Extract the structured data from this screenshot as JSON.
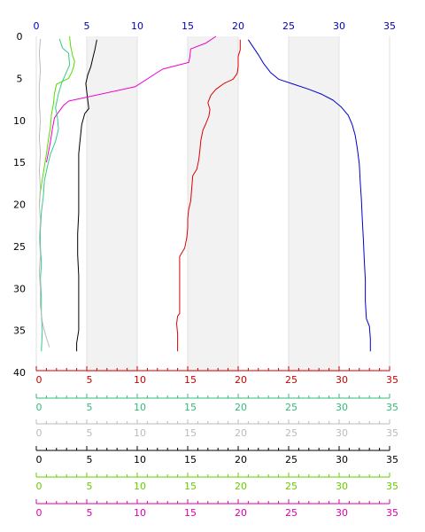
{
  "chart_data": {
    "type": "line",
    "orientation": "vertical-profile",
    "grid": true,
    "y_axis": {
      "min": 0,
      "max": 40,
      "ticks": [
        0,
        5,
        10,
        15,
        20,
        25,
        30,
        35,
        40
      ],
      "inverted": true
    },
    "bands": [
      [
        5,
        10
      ],
      [
        15,
        20
      ],
      [
        25,
        30
      ]
    ],
    "x_axes": [
      {
        "id": "top",
        "position": "top",
        "color": "#0000bb",
        "min": 0,
        "max": 35,
        "ticks": [
          0,
          5,
          10,
          15,
          20,
          25,
          30,
          35
        ]
      },
      {
        "id": "red",
        "position": "bottom",
        "color": "#cc0000",
        "min": 0,
        "max": 35,
        "ticks": [
          0,
          5,
          10,
          15,
          20,
          25,
          30,
          35
        ]
      },
      {
        "id": "teal",
        "position": "bottom",
        "color": "#33bb77",
        "min": 0,
        "max": 35,
        "ticks": [
          0,
          5,
          10,
          15,
          20,
          25,
          30,
          35
        ]
      },
      {
        "id": "lightgray",
        "position": "bottom",
        "color": "#bbbbbb",
        "min": 0,
        "max": 35,
        "ticks": [
          0,
          5,
          10,
          15,
          20,
          25,
          30,
          35
        ]
      },
      {
        "id": "black",
        "position": "bottom",
        "color": "#000000",
        "min": 0,
        "max": 35,
        "ticks": [
          0,
          5,
          10,
          15,
          20,
          25,
          30,
          35
        ]
      },
      {
        "id": "green",
        "position": "bottom",
        "color": "#66cc00",
        "min": 0,
        "max": 35,
        "ticks": [
          0,
          5,
          10,
          15,
          20,
          25,
          30,
          35
        ]
      },
      {
        "id": "magenta",
        "position": "bottom",
        "color": "#dd00aa",
        "min": 0,
        "max": 35,
        "ticks": [
          0,
          5,
          10,
          15,
          20,
          25,
          30,
          35
        ]
      }
    ],
    "series": [
      {
        "axis": "top",
        "color": "#0000cc",
        "points": [
          [
            21.0,
            0.4
          ],
          [
            21.5,
            1.3
          ],
          [
            22.0,
            2.2
          ],
          [
            22.5,
            3.2
          ],
          [
            23.2,
            4.3
          ],
          [
            24.0,
            5.1
          ],
          [
            25.5,
            5.7
          ],
          [
            27.0,
            6.3
          ],
          [
            28.3,
            6.9
          ],
          [
            29.4,
            7.6
          ],
          [
            30.2,
            8.4
          ],
          [
            30.9,
            9.4
          ],
          [
            31.3,
            10.5
          ],
          [
            31.6,
            11.8
          ],
          [
            31.8,
            13.3
          ],
          [
            32.0,
            15.2
          ],
          [
            32.1,
            17.4
          ],
          [
            32.2,
            19.3
          ],
          [
            32.3,
            21.8
          ],
          [
            32.4,
            24.2
          ],
          [
            32.5,
            26.8
          ],
          [
            32.6,
            29.0
          ],
          [
            32.6,
            31.5
          ],
          [
            32.7,
            33.6
          ],
          [
            33.0,
            34.5
          ],
          [
            33.1,
            36.0
          ],
          [
            33.1,
            37.5
          ]
        ]
      },
      {
        "axis": "red",
        "color": "#dd0000",
        "points": [
          [
            20.2,
            0.4
          ],
          [
            20.2,
            1.6
          ],
          [
            20.0,
            2.4
          ],
          [
            20.0,
            3.6
          ],
          [
            19.9,
            4.4
          ],
          [
            19.5,
            5.1
          ],
          [
            18.6,
            5.6
          ],
          [
            17.8,
            6.3
          ],
          [
            17.3,
            7.0
          ],
          [
            17.0,
            7.9
          ],
          [
            17.2,
            8.7
          ],
          [
            17.1,
            9.5
          ],
          [
            16.8,
            10.4
          ],
          [
            16.5,
            11.2
          ],
          [
            16.3,
            12.4
          ],
          [
            16.2,
            13.6
          ],
          [
            16.1,
            14.7
          ],
          [
            15.9,
            15.8
          ],
          [
            15.5,
            16.6
          ],
          [
            15.4,
            18.0
          ],
          [
            15.3,
            19.6
          ],
          [
            15.1,
            20.6
          ],
          [
            15.0,
            21.7
          ],
          [
            15.0,
            22.8
          ],
          [
            14.9,
            24.0
          ],
          [
            14.7,
            25.2
          ],
          [
            14.2,
            26.2
          ],
          [
            14.2,
            28.0
          ],
          [
            14.2,
            30.0
          ],
          [
            14.2,
            31.6
          ],
          [
            14.2,
            33.0
          ],
          [
            14.0,
            33.3
          ],
          [
            13.9,
            34.2
          ],
          [
            14.0,
            35.4
          ],
          [
            14.0,
            37.5
          ]
        ]
      },
      {
        "axis": "black",
        "color": "#000000",
        "points": [
          [
            6.0,
            0.4
          ],
          [
            5.8,
            1.6
          ],
          [
            5.6,
            2.6
          ],
          [
            5.4,
            3.6
          ],
          [
            5.1,
            4.6
          ],
          [
            4.9,
            5.6
          ],
          [
            5.0,
            6.6
          ],
          [
            5.1,
            7.6
          ],
          [
            5.2,
            8.6
          ],
          [
            4.8,
            9.2
          ],
          [
            4.5,
            10.5
          ],
          [
            4.4,
            11.6
          ],
          [
            4.3,
            12.8
          ],
          [
            4.2,
            14.0
          ],
          [
            4.2,
            16.0
          ],
          [
            4.2,
            18.5
          ],
          [
            4.2,
            21.0
          ],
          [
            4.1,
            23.5
          ],
          [
            4.1,
            26.0
          ],
          [
            4.2,
            28.5
          ],
          [
            4.2,
            31.0
          ],
          [
            4.2,
            33.0
          ],
          [
            4.2,
            35.0
          ],
          [
            4.0,
            36.5
          ],
          [
            4.0,
            37.5
          ]
        ]
      },
      {
        "axis": "magenta",
        "color": "#ee00cc",
        "points": [
          [
            17.8,
            0.0
          ],
          [
            16.8,
            0.8
          ],
          [
            15.3,
            1.5
          ],
          [
            15.2,
            2.5
          ],
          [
            15.1,
            3.1
          ],
          [
            12.5,
            3.9
          ],
          [
            9.8,
            6.0
          ],
          [
            3.2,
            7.7
          ],
          [
            2.7,
            8.2
          ],
          [
            1.8,
            9.7
          ],
          [
            1.6,
            11.0
          ],
          [
            1.4,
            12.5
          ],
          [
            1.2,
            13.8
          ],
          [
            1.0,
            15.0
          ]
        ]
      },
      {
        "axis": "green",
        "color": "#55dd00",
        "points": [
          [
            3.3,
            0.0
          ],
          [
            3.4,
            1.2
          ],
          [
            3.6,
            2.3
          ],
          [
            3.8,
            3.0
          ],
          [
            3.7,
            3.6
          ],
          [
            3.5,
            4.3
          ],
          [
            3.2,
            5.0
          ],
          [
            2.0,
            5.7
          ],
          [
            1.8,
            6.8
          ],
          [
            1.7,
            8.0
          ],
          [
            1.5,
            9.3
          ],
          [
            1.4,
            10.8
          ],
          [
            1.2,
            12.3
          ],
          [
            1.0,
            14.0
          ],
          [
            0.8,
            15.5
          ],
          [
            0.6,
            17.0
          ],
          [
            0.4,
            18.5
          ],
          [
            0.3,
            20.0
          ]
        ]
      },
      {
        "axis": "teal",
        "color": "#33cc88",
        "points": [
          [
            2.3,
            0.3
          ],
          [
            2.6,
            1.4
          ],
          [
            3.2,
            2.0
          ],
          [
            3.3,
            3.4
          ],
          [
            2.9,
            4.5
          ],
          [
            2.5,
            5.6
          ],
          [
            2.2,
            6.8
          ],
          [
            1.9,
            8.5
          ],
          [
            2.1,
            9.7
          ],
          [
            2.2,
            11.0
          ],
          [
            1.9,
            12.5
          ],
          [
            1.4,
            14.0
          ],
          [
            1.1,
            15.5
          ],
          [
            0.8,
            17.2
          ],
          [
            0.7,
            19.0
          ],
          [
            0.5,
            21.0
          ],
          [
            0.4,
            23.0
          ],
          [
            0.4,
            25.0
          ],
          [
            0.5,
            27.0
          ],
          [
            0.4,
            29.0
          ],
          [
            0.5,
            31.0
          ],
          [
            0.5,
            33.0
          ],
          [
            0.6,
            35.0
          ],
          [
            0.5,
            37.5
          ]
        ]
      },
      {
        "axis": "lightgray",
        "color": "#bbbbbb",
        "points": [
          [
            0.4,
            0.3
          ],
          [
            0.3,
            2.0
          ],
          [
            0.4,
            4.0
          ],
          [
            0.3,
            6.0
          ],
          [
            0.3,
            8.0
          ],
          [
            0.4,
            10.0
          ],
          [
            0.3,
            12.0
          ],
          [
            0.4,
            14.0
          ],
          [
            0.3,
            16.0
          ],
          [
            0.4,
            18.0
          ],
          [
            0.3,
            20.0
          ],
          [
            0.4,
            22.0
          ],
          [
            0.3,
            24.0
          ],
          [
            0.4,
            26.0
          ],
          [
            0.3,
            28.0
          ],
          [
            0.4,
            30.0
          ],
          [
            0.4,
            32.0
          ],
          [
            0.6,
            34.0
          ],
          [
            0.9,
            35.5
          ],
          [
            1.3,
            37.0
          ]
        ]
      }
    ]
  }
}
